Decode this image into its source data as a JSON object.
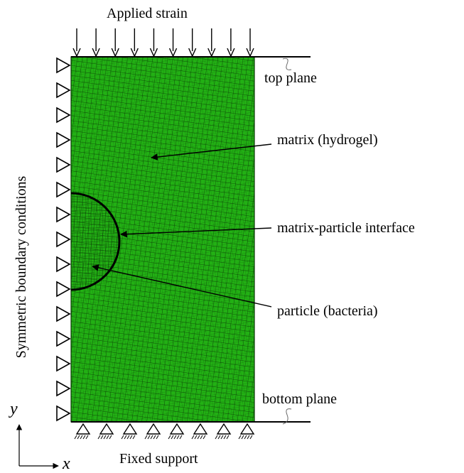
{
  "labels": {
    "applied_strain": "Applied strain",
    "top_plane": "top plane",
    "matrix": "matrix (hydrogel)",
    "interface": "matrix-particle interface",
    "particle": "particle (bacteria)",
    "bottom_plane": "bottom plane",
    "fixed_support": "Fixed support",
    "symmetric_bc": "Symmetric boundary conditions",
    "axis_y": "y",
    "axis_x": "x"
  },
  "counts": {
    "load_arrows": 10,
    "symmetry_triangles": 15,
    "fixed_supports": 8
  },
  "colors": {
    "mesh_fill": "#22b014",
    "mesh_line": "#0a3a05",
    "stroke": "#000000"
  }
}
